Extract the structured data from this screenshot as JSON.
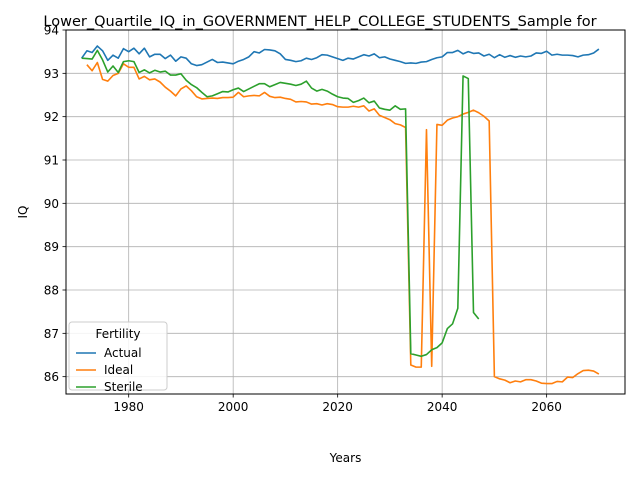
{
  "chart_data": {
    "type": "line",
    "title": "Lower_Quartile_IQ_in_GOVERNMENT_HELP_COLLEGE_STUDENTS_Sample for",
    "xlabel": "Years",
    "ylabel": "IQ",
    "xlim": [
      1968,
      2075
    ],
    "ylim": [
      85.6,
      94.0
    ],
    "xticks": [
      1980,
      2000,
      2020,
      2040,
      2060
    ],
    "yticks": [
      86,
      87,
      88,
      89,
      90,
      91,
      92,
      93,
      94
    ],
    "grid": true,
    "legend": {
      "title": "Fertility",
      "placement": "lower-left"
    },
    "series": [
      {
        "name": "Actual",
        "color": "#1f77b4",
        "points": [
          [
            1971,
            93.35
          ],
          [
            1972,
            93.52
          ],
          [
            1973,
            93.48
          ],
          [
            1974,
            93.63
          ],
          [
            1975,
            93.52
          ],
          [
            1976,
            93.3
          ],
          [
            1977,
            93.42
          ],
          [
            1978,
            93.35
          ],
          [
            1979,
            93.57
          ],
          [
            1980,
            93.5
          ],
          [
            1981,
            93.58
          ],
          [
            1982,
            93.45
          ],
          [
            1983,
            93.58
          ],
          [
            1984,
            93.38
          ],
          [
            1985,
            93.44
          ],
          [
            1986,
            93.44
          ],
          [
            1987,
            93.34
          ],
          [
            1988,
            93.42
          ],
          [
            1989,
            93.28
          ],
          [
            1990,
            93.38
          ],
          [
            1991,
            93.35
          ],
          [
            1992,
            93.22
          ],
          [
            1993,
            93.18
          ],
          [
            1994,
            93.2
          ],
          [
            1995,
            93.26
          ],
          [
            1996,
            93.32
          ],
          [
            1997,
            93.25
          ],
          [
            1998,
            93.26
          ],
          [
            1999,
            93.24
          ],
          [
            2000,
            93.22
          ],
          [
            2001,
            93.28
          ],
          [
            2002,
            93.32
          ],
          [
            2003,
            93.38
          ],
          [
            2004,
            93.5
          ],
          [
            2005,
            93.47
          ],
          [
            2006,
            93.55
          ],
          [
            2007,
            93.54
          ],
          [
            2008,
            93.52
          ],
          [
            2009,
            93.45
          ],
          [
            2010,
            93.32
          ],
          [
            2011,
            93.3
          ],
          [
            2012,
            93.27
          ],
          [
            2013,
            93.29
          ],
          [
            2014,
            93.35
          ],
          [
            2015,
            93.32
          ],
          [
            2016,
            93.36
          ],
          [
            2017,
            93.43
          ],
          [
            2018,
            93.42
          ],
          [
            2019,
            93.38
          ],
          [
            2020,
            93.34
          ],
          [
            2021,
            93.3
          ],
          [
            2022,
            93.35
          ],
          [
            2023,
            93.33
          ],
          [
            2024,
            93.38
          ],
          [
            2025,
            93.43
          ],
          [
            2026,
            93.4
          ],
          [
            2027,
            93.45
          ],
          [
            2028,
            93.36
          ],
          [
            2029,
            93.38
          ],
          [
            2030,
            93.33
          ],
          [
            2031,
            93.3
          ],
          [
            2032,
            93.27
          ],
          [
            2033,
            93.23
          ],
          [
            2034,
            93.24
          ],
          [
            2035,
            93.23
          ],
          [
            2036,
            93.26
          ],
          [
            2037,
            93.27
          ],
          [
            2038,
            93.32
          ],
          [
            2039,
            93.36
          ],
          [
            2040,
            93.38
          ],
          [
            2041,
            93.48
          ],
          [
            2042,
            93.48
          ],
          [
            2043,
            93.53
          ],
          [
            2044,
            93.45
          ],
          [
            2045,
            93.5
          ],
          [
            2046,
            93.46
          ],
          [
            2047,
            93.47
          ],
          [
            2048,
            93.4
          ],
          [
            2049,
            93.44
          ],
          [
            2050,
            93.36
          ],
          [
            2051,
            93.43
          ],
          [
            2052,
            93.37
          ],
          [
            2053,
            93.41
          ],
          [
            2054,
            93.37
          ],
          [
            2055,
            93.4
          ],
          [
            2056,
            93.38
          ],
          [
            2057,
            93.4
          ],
          [
            2058,
            93.47
          ],
          [
            2059,
            93.46
          ],
          [
            2060,
            93.51
          ],
          [
            2061,
            93.42
          ],
          [
            2062,
            93.44
          ],
          [
            2063,
            93.42
          ],
          [
            2064,
            93.42
          ],
          [
            2065,
            93.41
          ],
          [
            2066,
            93.38
          ],
          [
            2067,
            93.42
          ],
          [
            2068,
            93.43
          ],
          [
            2069,
            93.47
          ],
          [
            2070,
            93.56
          ]
        ]
      },
      {
        "name": "Ideal",
        "color": "#ff7f0e",
        "points": [
          [
            1972,
            93.2
          ],
          [
            1973,
            93.06
          ],
          [
            1974,
            93.25
          ],
          [
            1975,
            92.86
          ],
          [
            1976,
            92.82
          ],
          [
            1977,
            92.95
          ],
          [
            1978,
            93.0
          ],
          [
            1979,
            93.22
          ],
          [
            1980,
            93.14
          ],
          [
            1981,
            93.14
          ],
          [
            1982,
            92.87
          ],
          [
            1983,
            92.93
          ],
          [
            1984,
            92.85
          ],
          [
            1985,
            92.87
          ],
          [
            1986,
            92.8
          ],
          [
            1987,
            92.68
          ],
          [
            1988,
            92.59
          ],
          [
            1989,
            92.48
          ],
          [
            1990,
            92.64
          ],
          [
            1991,
            92.71
          ],
          [
            1992,
            92.6
          ],
          [
            1993,
            92.46
          ],
          [
            1994,
            92.41
          ],
          [
            1995,
            92.42
          ],
          [
            1996,
            92.43
          ],
          [
            1997,
            92.42
          ],
          [
            1998,
            92.44
          ],
          [
            1999,
            92.44
          ],
          [
            2000,
            92.45
          ],
          [
            2001,
            92.56
          ],
          [
            2002,
            92.46
          ],
          [
            2003,
            92.48
          ],
          [
            2004,
            92.49
          ],
          [
            2005,
            92.48
          ],
          [
            2006,
            92.56
          ],
          [
            2007,
            92.47
          ],
          [
            2008,
            92.44
          ],
          [
            2009,
            92.45
          ],
          [
            2010,
            92.42
          ],
          [
            2011,
            92.4
          ],
          [
            2012,
            92.34
          ],
          [
            2013,
            92.35
          ],
          [
            2014,
            92.34
          ],
          [
            2015,
            92.29
          ],
          [
            2016,
            92.3
          ],
          [
            2017,
            92.27
          ],
          [
            2018,
            92.3
          ],
          [
            2019,
            92.28
          ],
          [
            2020,
            92.23
          ],
          [
            2021,
            92.22
          ],
          [
            2022,
            92.22
          ],
          [
            2023,
            92.24
          ],
          [
            2024,
            92.22
          ],
          [
            2025,
            92.25
          ],
          [
            2026,
            92.13
          ],
          [
            2027,
            92.18
          ],
          [
            2028,
            92.03
          ],
          [
            2029,
            91.98
          ],
          [
            2030,
            91.93
          ],
          [
            2031,
            91.84
          ],
          [
            2032,
            91.81
          ],
          [
            2033,
            91.75
          ],
          [
            2034,
            86.27
          ],
          [
            2035,
            86.22
          ],
          [
            2036,
            86.22
          ],
          [
            2037,
            91.7
          ],
          [
            2038,
            86.24
          ],
          [
            2039,
            91.82
          ],
          [
            2040,
            91.8
          ],
          [
            2041,
            91.92
          ],
          [
            2042,
            91.97
          ],
          [
            2043,
            92.0
          ],
          [
            2044,
            92.06
          ],
          [
            2045,
            92.1
          ],
          [
            2046,
            92.15
          ],
          [
            2047,
            92.09
          ],
          [
            2048,
            92.01
          ],
          [
            2049,
            91.9
          ],
          [
            2050,
            86.0
          ],
          [
            2051,
            85.95
          ],
          [
            2052,
            85.92
          ],
          [
            2053,
            85.86
          ],
          [
            2054,
            85.9
          ],
          [
            2055,
            85.88
          ],
          [
            2056,
            85.93
          ],
          [
            2057,
            85.93
          ],
          [
            2058,
            85.9
          ],
          [
            2059,
            85.85
          ],
          [
            2060,
            85.84
          ],
          [
            2061,
            85.84
          ],
          [
            2062,
            85.89
          ],
          [
            2063,
            85.88
          ],
          [
            2064,
            85.99
          ],
          [
            2065,
            85.98
          ],
          [
            2066,
            86.07
          ],
          [
            2067,
            86.14
          ],
          [
            2068,
            86.15
          ],
          [
            2069,
            86.13
          ],
          [
            2070,
            86.06
          ]
        ]
      },
      {
        "name": "Sterile",
        "color": "#2ca02c",
        "points": [
          [
            1971,
            93.35
          ],
          [
            1972,
            93.34
          ],
          [
            1973,
            93.33
          ],
          [
            1974,
            93.53
          ],
          [
            1975,
            93.31
          ],
          [
            1976,
            93.03
          ],
          [
            1977,
            93.17
          ],
          [
            1978,
            93.02
          ],
          [
            1979,
            93.27
          ],
          [
            1980,
            93.29
          ],
          [
            1981,
            93.27
          ],
          [
            1982,
            93.02
          ],
          [
            1983,
            93.08
          ],
          [
            1984,
            93.01
          ],
          [
            1985,
            93.07
          ],
          [
            1986,
            93.03
          ],
          [
            1987,
            93.05
          ],
          [
            1988,
            92.96
          ],
          [
            1989,
            92.96
          ],
          [
            1990,
            92.99
          ],
          [
            1991,
            92.84
          ],
          [
            1992,
            92.74
          ],
          [
            1993,
            92.67
          ],
          [
            1994,
            92.56
          ],
          [
            1995,
            92.46
          ],
          [
            1996,
            92.48
          ],
          [
            1997,
            92.53
          ],
          [
            1998,
            92.58
          ],
          [
            1999,
            92.57
          ],
          [
            2000,
            92.62
          ],
          [
            2001,
            92.66
          ],
          [
            2002,
            92.58
          ],
          [
            2003,
            92.64
          ],
          [
            2004,
            92.7
          ],
          [
            2005,
            92.76
          ],
          [
            2006,
            92.76
          ],
          [
            2007,
            92.69
          ],
          [
            2008,
            92.74
          ],
          [
            2009,
            92.79
          ],
          [
            2010,
            92.77
          ],
          [
            2011,
            92.75
          ],
          [
            2012,
            92.72
          ],
          [
            2013,
            92.75
          ],
          [
            2014,
            92.82
          ],
          [
            2015,
            92.66
          ],
          [
            2016,
            92.59
          ],
          [
            2017,
            92.63
          ],
          [
            2018,
            92.59
          ],
          [
            2019,
            92.52
          ],
          [
            2020,
            92.46
          ],
          [
            2021,
            92.43
          ],
          [
            2022,
            92.42
          ],
          [
            2023,
            92.33
          ],
          [
            2024,
            92.37
          ],
          [
            2025,
            92.43
          ],
          [
            2026,
            92.32
          ],
          [
            2027,
            92.36
          ],
          [
            2028,
            92.2
          ],
          [
            2029,
            92.17
          ],
          [
            2030,
            92.15
          ],
          [
            2031,
            92.25
          ],
          [
            2032,
            92.17
          ],
          [
            2033,
            92.18
          ],
          [
            2034,
            86.53
          ],
          [
            2035,
            86.5
          ],
          [
            2036,
            86.47
          ],
          [
            2037,
            86.51
          ],
          [
            2038,
            86.62
          ],
          [
            2039,
            86.67
          ],
          [
            2040,
            86.78
          ],
          [
            2041,
            87.11
          ],
          [
            2042,
            87.22
          ],
          [
            2043,
            87.58
          ],
          [
            2044,
            92.94
          ],
          [
            2045,
            92.88
          ],
          [
            2046,
            87.48
          ],
          [
            2047,
            87.33
          ]
        ]
      }
    ]
  }
}
